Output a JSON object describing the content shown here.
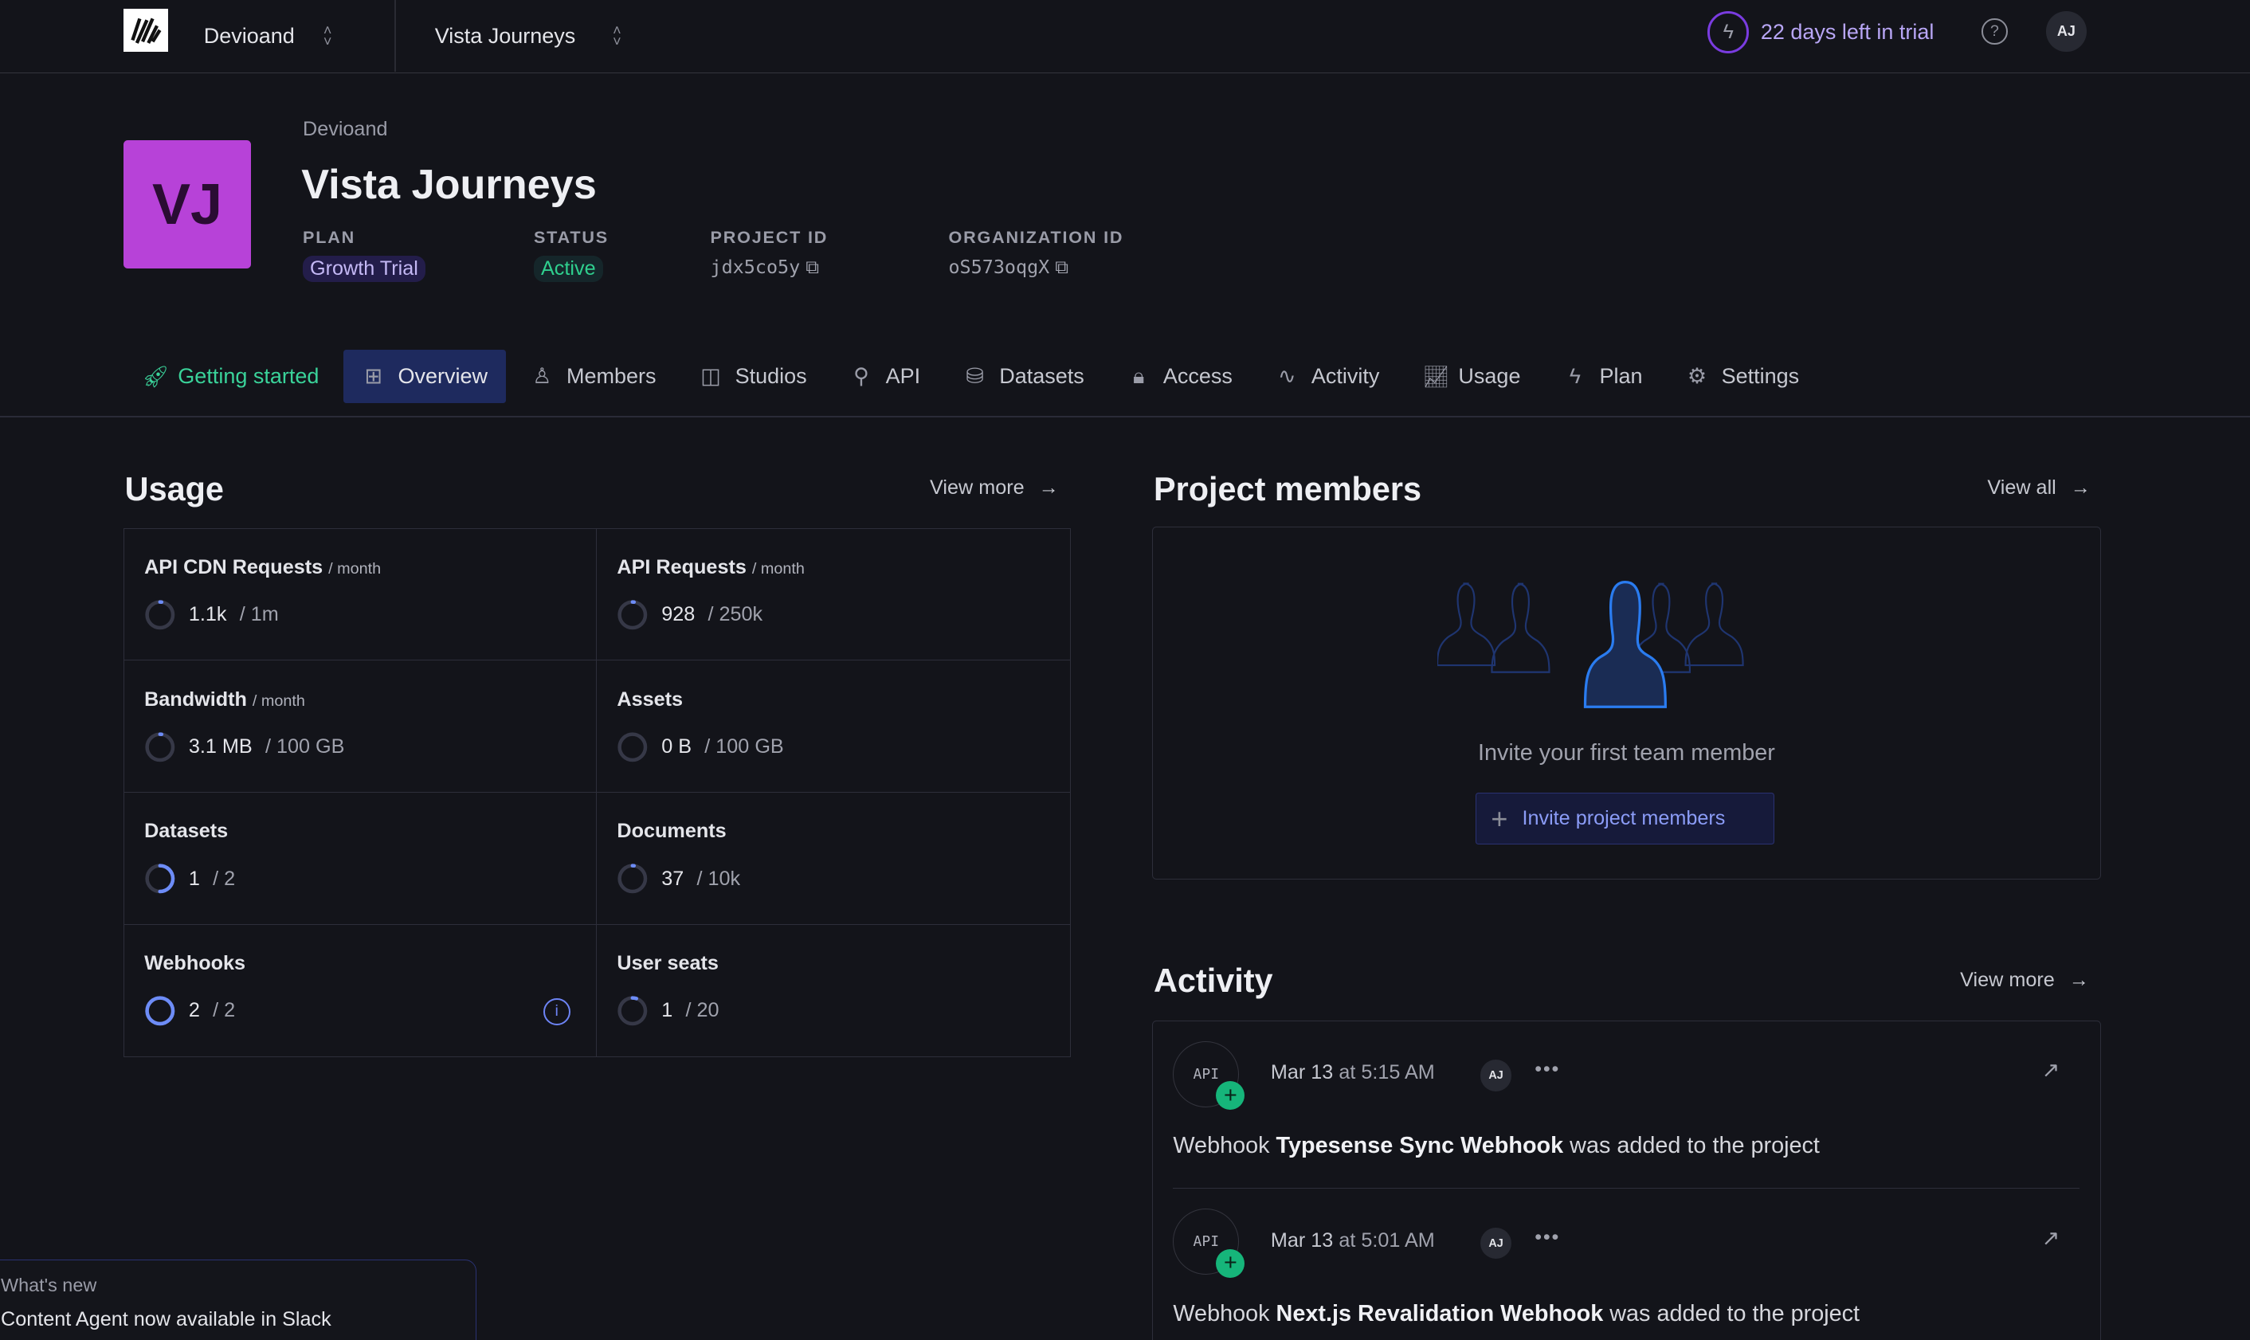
{
  "topbar": {
    "org": "Devioand",
    "project": "Vista Journeys",
    "trial": "22 days left in trial",
    "help_icon": "help-circle-icon",
    "user_initials": "AJ"
  },
  "header": {
    "avatar_initials": "VJ",
    "avatar_color": "#b742d8",
    "org": "Devioand",
    "title": "Vista Journeys",
    "plan_label": "PLAN",
    "plan": "Growth Trial",
    "status_label": "STATUS",
    "status": "Active",
    "project_id_label": "PROJECT ID",
    "project_id": "jdx5co5y",
    "org_id_label": "ORGANIZATION ID",
    "org_id": "oS573oqgX"
  },
  "tabs": [
    {
      "label": "Getting started",
      "icon": "rocket-icon"
    },
    {
      "label": "Overview",
      "icon": "layout-icon",
      "active": true
    },
    {
      "label": "Members",
      "icon": "users-icon"
    },
    {
      "label": "Studios",
      "icon": "studio-icon"
    },
    {
      "label": "API",
      "icon": "plug-icon"
    },
    {
      "label": "Datasets",
      "icon": "database-icon"
    },
    {
      "label": "Access",
      "icon": "lock-icon"
    },
    {
      "label": "Activity",
      "icon": "activity-icon"
    },
    {
      "label": "Usage",
      "icon": "chart-icon"
    },
    {
      "label": "Plan",
      "icon": "bolt-icon"
    },
    {
      "label": "Settings",
      "icon": "gear-icon"
    }
  ],
  "usage": {
    "title": "Usage",
    "view_more": "View more",
    "items": [
      {
        "name": "API CDN Requests",
        "unit": "/ month",
        "used": "1.1k",
        "limit": "/ 1m",
        "fraction": 0.0011
      },
      {
        "name": "API Requests",
        "unit": "/ month",
        "used": "928",
        "limit": "/ 250k",
        "fraction": 0.0037
      },
      {
        "name": "Bandwidth",
        "unit": "/ month",
        "used": "3.1 MB",
        "limit": "/ 100 GB",
        "fraction": 3e-05
      },
      {
        "name": "Assets",
        "unit": "",
        "used": "0 B",
        "limit": "/ 100 GB",
        "fraction": 0
      },
      {
        "name": "Datasets",
        "unit": "",
        "used": "1",
        "limit": "/ 2",
        "fraction": 0.5
      },
      {
        "name": "Documents",
        "unit": "",
        "used": "37",
        "limit": "/ 10k",
        "fraction": 0.0037
      },
      {
        "name": "Webhooks",
        "unit": "",
        "used": "2",
        "limit": "/ 2",
        "fraction": 1,
        "info": true
      },
      {
        "name": "User seats",
        "unit": "",
        "used": "1",
        "limit": "/ 20",
        "fraction": 0.05
      }
    ]
  },
  "members": {
    "title": "Project members",
    "view_all": "View all",
    "empty": "Invite your first team member",
    "invite": "Invite project members"
  },
  "activity": {
    "title": "Activity",
    "view_more": "View more",
    "items": [
      {
        "source": "API",
        "date": "Mar 13",
        "time": "at 5:15 AM",
        "user": "AJ",
        "pre": "Webhook ",
        "name": "Typesense Sync Webhook",
        "post": " was added to the project"
      },
      {
        "source": "API",
        "date": "Mar 13",
        "time": "at 5:01 AM",
        "user": "AJ",
        "pre": "Webhook ",
        "name": "Next.js Revalidation Webhook",
        "post": " was added to the project"
      }
    ]
  },
  "news": {
    "label": "What's new",
    "text": "Content Agent now available in Slack"
  }
}
